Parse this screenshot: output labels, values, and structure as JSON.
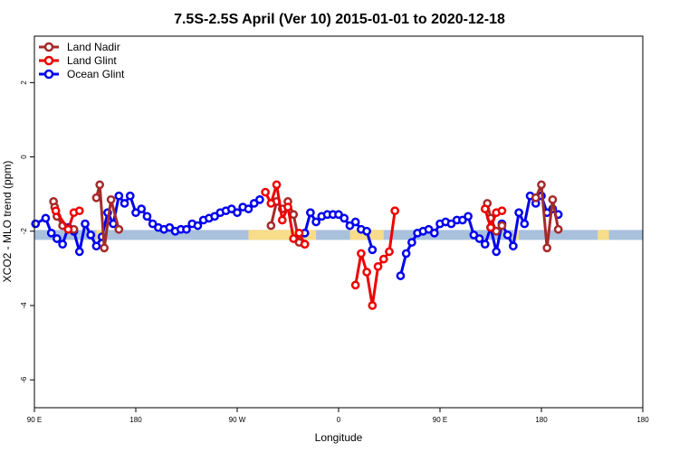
{
  "chart_data": {
    "type": "line",
    "title": "7.5S-2.5S April (Ver 10)   2015-01-01 to 2020-12-18",
    "xlabel": "Longitude",
    "ylabel": "XCO2 - MLO trend (ppm)",
    "xlim": [
      0,
      540
    ],
    "ylim": [
      -6.75,
      3.25
    ],
    "grid": false,
    "legend_position": "top-left",
    "x_ticks": [
      {
        "value": 0,
        "label": "90 E"
      },
      {
        "value": 90,
        "label": "180"
      },
      {
        "value": 180,
        "label": "90 W"
      },
      {
        "value": 270,
        "label": "0"
      },
      {
        "value": 360,
        "label": "90 E"
      },
      {
        "value": 450,
        "label": "180"
      },
      {
        "value": 540,
        "label": "180"
      }
    ],
    "y_ticks": [
      2,
      0,
      -2,
      -4,
      -6
    ],
    "bands": [
      {
        "x_start": 0,
        "x_end": 540,
        "y_center": -2.1,
        "color": "#a9c1dd"
      },
      {
        "x_start": 55,
        "x_end": 60,
        "y_center": -2.1,
        "color": "#f7dc8a"
      },
      {
        "x_start": 190,
        "x_end": 250,
        "y_center": -2.1,
        "color": "#f7dc8a"
      },
      {
        "x_start": 280,
        "x_end": 310,
        "y_center": -2.1,
        "color": "#f7dc8a"
      },
      {
        "x_start": 425,
        "x_end": 430,
        "y_center": -2.1,
        "color": "#f7dc8a"
      },
      {
        "x_start": 500,
        "x_end": 510,
        "y_center": -2.1,
        "color": "#f7dc8a"
      }
    ],
    "series": [
      {
        "name": "Ocean Glint",
        "color": "#0000ee",
        "segments": [
          [
            [
              1,
              -1.8
            ],
            [
              10,
              -1.65
            ],
            [
              15,
              -2.05
            ],
            [
              20,
              -2.2
            ],
            [
              25,
              -2.35
            ],
            [
              30,
              -1.9
            ],
            [
              35,
              -2.0
            ],
            [
              40,
              -2.55
            ],
            [
              45,
              -1.8
            ],
            [
              50,
              -2.1
            ],
            [
              55,
              -2.4
            ],
            [
              60,
              -2.15
            ],
            [
              65,
              -1.5
            ],
            [
              70,
              -1.8
            ],
            [
              75,
              -1.05
            ],
            [
              80,
              -1.25
            ],
            [
              85,
              -1.05
            ],
            [
              90,
              -1.5
            ],
            [
              95,
              -1.4
            ],
            [
              100,
              -1.6
            ],
            [
              105,
              -1.8
            ],
            [
              110,
              -1.9
            ],
            [
              115,
              -1.95
            ],
            [
              120,
              -1.9
            ],
            [
              125,
              -2.0
            ],
            [
              130,
              -1.95
            ],
            [
              135,
              -1.95
            ],
            [
              140,
              -1.8
            ],
            [
              145,
              -1.85
            ],
            [
              150,
              -1.7
            ],
            [
              155,
              -1.65
            ],
            [
              160,
              -1.6
            ],
            [
              165,
              -1.5
            ],
            [
              170,
              -1.45
            ],
            [
              175,
              -1.4
            ],
            [
              180,
              -1.5
            ],
            [
              185,
              -1.35
            ],
            [
              190,
              -1.4
            ],
            [
              195,
              -1.25
            ],
            [
              200,
              -1.15
            ]
          ],
          [
            [
              240,
              -2.05
            ],
            [
              245,
              -1.5
            ],
            [
              250,
              -1.75
            ],
            [
              255,
              -1.6
            ],
            [
              260,
              -1.55
            ],
            [
              265,
              -1.55
            ],
            [
              270,
              -1.55
            ],
            [
              275,
              -1.65
            ],
            [
              280,
              -1.85
            ],
            [
              285,
              -1.75
            ],
            [
              290,
              -1.95
            ],
            [
              295,
              -2.0
            ],
            [
              300,
              -2.5
            ]
          ],
          [
            [
              325,
              -3.2
            ],
            [
              330,
              -2.6
            ],
            [
              335,
              -2.3
            ],
            [
              340,
              -2.05
            ],
            [
              345,
              -2.0
            ],
            [
              350,
              -1.95
            ],
            [
              355,
              -2.05
            ],
            [
              360,
              -1.8
            ],
            [
              365,
              -1.75
            ],
            [
              370,
              -1.8
            ],
            [
              375,
              -1.7
            ],
            [
              380,
              -1.7
            ],
            [
              385,
              -1.6
            ],
            [
              390,
              -2.1
            ],
            [
              395,
              -2.2
            ],
            [
              400,
              -2.35
            ],
            [
              405,
              -1.9
            ],
            [
              410,
              -2.55
            ],
            [
              415,
              -1.8
            ],
            [
              420,
              -2.1
            ],
            [
              425,
              -2.4
            ],
            [
              430,
              -1.5
            ],
            [
              435,
              -1.8
            ],
            [
              440,
              -1.05
            ],
            [
              445,
              -1.25
            ],
            [
              450,
              -1.05
            ],
            [
              455,
              -1.5
            ],
            [
              460,
              -1.4
            ],
            [
              465,
              -1.55
            ]
          ]
        ]
      },
      {
        "name": "Land Nadir",
        "color": "#a52a2a",
        "segments": [
          [
            [
              17,
              -1.2
            ],
            [
              18,
              -1.35
            ],
            [
              20,
              -1.6
            ],
            [
              25,
              -1.85
            ],
            [
              35,
              -1.95
            ]
          ],
          [
            [
              55,
              -1.1
            ],
            [
              58,
              -0.75
            ],
            [
              62,
              -2.45
            ],
            [
              68,
              -1.15
            ],
            [
              75,
              -1.95
            ]
          ],
          [
            [
              210,
              -1.85
            ],
            [
              215,
              -1.2
            ],
            [
              220,
              -1.4
            ],
            [
              225,
              -1.2
            ],
            [
              230,
              -1.55
            ],
            [
              235,
              -2.3
            ],
            [
              240,
              -2.35
            ]
          ],
          [
            [
              402,
              -1.25
            ],
            [
              405,
              -1.65
            ],
            [
              410,
              -2.0
            ],
            [
              415,
              -1.85
            ]
          ],
          [
            [
              445,
              -1.1
            ],
            [
              450,
              -0.75
            ],
            [
              455,
              -2.45
            ],
            [
              460,
              -1.15
            ],
            [
              465,
              -1.95
            ]
          ]
        ]
      },
      {
        "name": "Land Glint",
        "color": "#ee0000",
        "segments": [
          [
            [
              19,
              -1.45
            ],
            [
              30,
              -1.95
            ],
            [
              35,
              -1.5
            ],
            [
              40,
              -1.45
            ]
          ],
          [
            [
              205,
              -0.95
            ],
            [
              210,
              -1.25
            ],
            [
              215,
              -0.75
            ],
            [
              220,
              -1.7
            ],
            [
              225,
              -1.35
            ],
            [
              230,
              -2.2
            ],
            [
              235,
              -2.05
            ],
            [
              240,
              -2.35
            ]
          ],
          [
            [
              285,
              -3.45
            ],
            [
              290,
              -2.6
            ],
            [
              295,
              -3.1
            ],
            [
              300,
              -4.0
            ],
            [
              305,
              -2.95
            ],
            [
              310,
              -2.75
            ],
            [
              315,
              -2.55
            ],
            [
              320,
              -1.45
            ]
          ],
          [
            [
              400,
              -1.4
            ],
            [
              405,
              -1.9
            ],
            [
              410,
              -1.5
            ],
            [
              415,
              -1.45
            ]
          ]
        ]
      }
    ],
    "legend": [
      {
        "name": "Land Nadir",
        "color": "#a52a2a"
      },
      {
        "name": "Land Glint",
        "color": "#ee0000"
      },
      {
        "name": "Ocean Glint",
        "color": "#0000ee"
      }
    ]
  }
}
